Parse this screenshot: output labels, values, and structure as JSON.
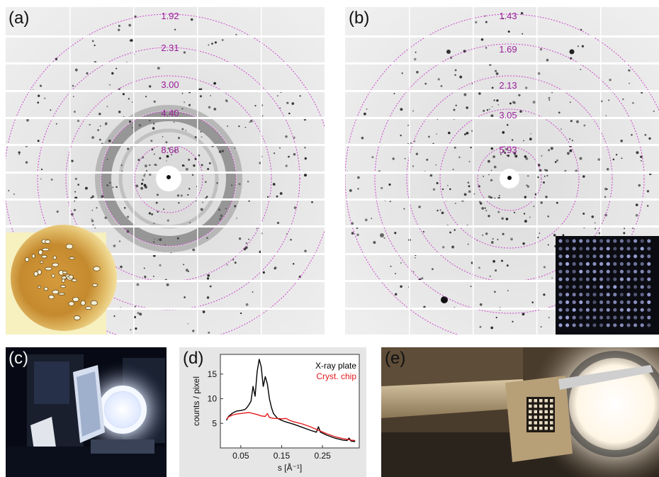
{
  "panels": {
    "a": {
      "label": "(a)",
      "ring_labels": [
        "1.92",
        "2.31",
        "3.00",
        "4.40",
        "8.68"
      ]
    },
    "b": {
      "label": "(b)",
      "ring_labels": [
        "1.43",
        "1.69",
        "2.13",
        "3.05",
        "5.93"
      ]
    },
    "c": {
      "label": "(c)"
    },
    "d": {
      "label": "(d)"
    },
    "e": {
      "label": "(e)"
    }
  },
  "colors": {
    "ring": "#cc44cc",
    "ring_label": "#9a1f9a",
    "xray_plate": "#000000",
    "cryst_chip": "#e31a1c",
    "plot_bg": "#e6e6e6"
  },
  "chart_data": {
    "type": "line",
    "xlabel": "s  [Å⁻¹]",
    "ylabel": "counts / pixel",
    "xlim": [
      0,
      0.34
    ],
    "ylim": [
      0,
      19
    ],
    "xticks": [
      0.05,
      0.15,
      0.25
    ],
    "xtick_labels": [
      "0.05",
      "0.15",
      "0.25"
    ],
    "yticks": [
      5,
      10,
      15
    ],
    "ytick_labels": [
      "5",
      "10",
      "15"
    ],
    "legend_position": "top-right",
    "series": [
      {
        "name": "X-ray plate",
        "color": "#000000",
        "x": [
          0.015,
          0.02,
          0.03,
          0.04,
          0.05,
          0.06,
          0.065,
          0.07,
          0.075,
          0.08,
          0.085,
          0.09,
          0.095,
          0.1,
          0.105,
          0.11,
          0.115,
          0.12,
          0.125,
          0.13,
          0.14,
          0.15,
          0.16,
          0.18,
          0.2,
          0.22,
          0.235,
          0.24,
          0.245,
          0.26,
          0.28,
          0.3,
          0.31,
          0.315,
          0.32,
          0.33
        ],
        "y": [
          5.6,
          6.4,
          7.1,
          7.5,
          7.6,
          7.8,
          8.2,
          8.8,
          9.5,
          12.5,
          10.5,
          15.5,
          18.0,
          16.5,
          12.5,
          14.5,
          13.0,
          10.0,
          8.2,
          7.0,
          6.0,
          5.6,
          5.3,
          4.8,
          4.2,
          3.6,
          3.2,
          4.3,
          3.2,
          2.6,
          2.0,
          1.6,
          1.5,
          2.0,
          1.4,
          1.3
        ]
      },
      {
        "name": "Cryst. chip",
        "color": "#e31a1c",
        "x": [
          0.015,
          0.02,
          0.03,
          0.04,
          0.05,
          0.06,
          0.07,
          0.08,
          0.09,
          0.1,
          0.11,
          0.115,
          0.12,
          0.13,
          0.14,
          0.15,
          0.16,
          0.17,
          0.18,
          0.2,
          0.22,
          0.24,
          0.26,
          0.28,
          0.3,
          0.32,
          0.33
        ],
        "y": [
          5.8,
          6.3,
          6.7,
          6.9,
          7.0,
          7.1,
          7.2,
          7.0,
          6.8,
          6.5,
          6.4,
          7.0,
          6.2,
          6.0,
          6.0,
          5.9,
          6.0,
          5.6,
          5.3,
          4.9,
          4.3,
          3.6,
          2.9,
          2.3,
          1.9,
          1.6,
          1.5
        ]
      }
    ]
  }
}
